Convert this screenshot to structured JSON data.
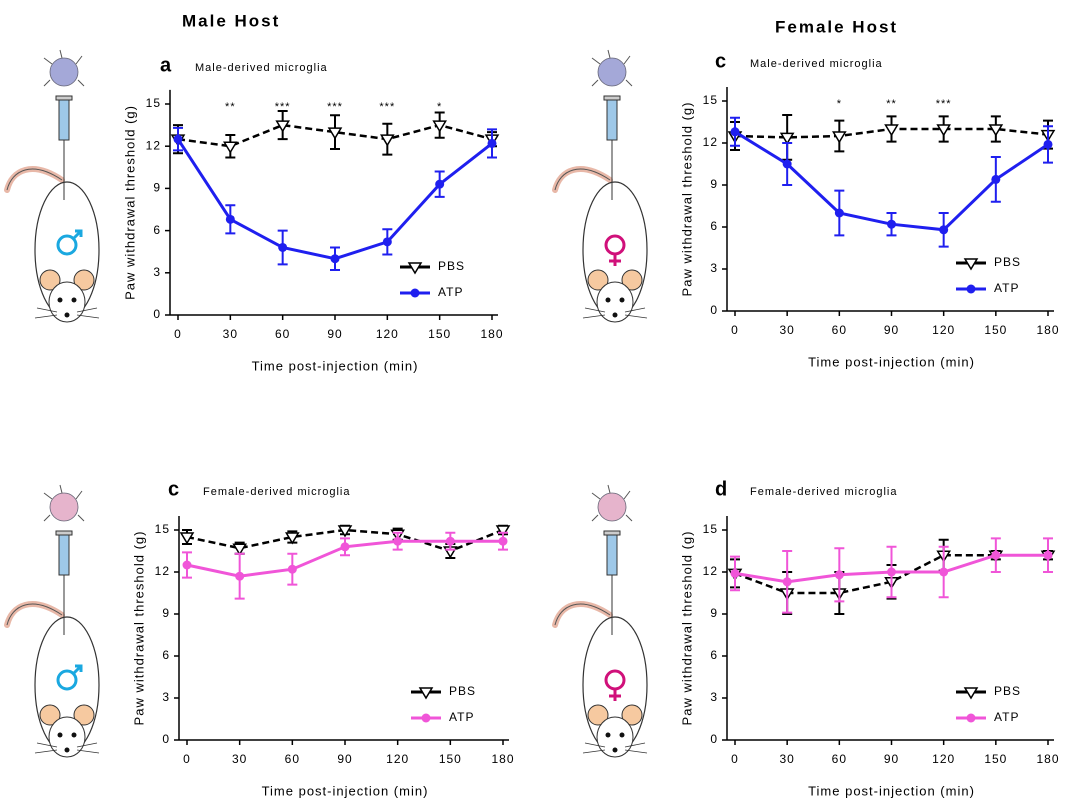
{
  "headers": [
    "Male Host",
    "Female Host"
  ],
  "chart_data": [
    {
      "type": "line",
      "panel": "a",
      "title": "Male-derived microglia",
      "xlabel": "Time post-injection (min)",
      "ylabel": "Paw withdrawal threshold (g)",
      "x": [
        0,
        30,
        60,
        90,
        120,
        150,
        180
      ],
      "xlim": [
        0,
        180
      ],
      "xticks": [
        0,
        30,
        60,
        90,
        120,
        150,
        180
      ],
      "ylim": [
        0,
        16
      ],
      "yticks": [
        0,
        3,
        6,
        9,
        12,
        15
      ],
      "legend": "lower right",
      "series": [
        {
          "name": "PBS",
          "color": "#000000",
          "linestyle": "dashed",
          "marker": "triangle-down",
          "values": [
            12.5,
            12,
            13.5,
            13,
            12.5,
            13.5,
            12.5
          ],
          "errors": [
            1,
            0.8,
            1,
            1.2,
            1.1,
            0.9,
            0.5
          ]
        },
        {
          "name": "ATP",
          "color": "#1f1fef",
          "linestyle": "solid",
          "marker": "circle",
          "values": [
            12.5,
            6.8,
            4.8,
            4,
            5.2,
            9.3,
            12.2
          ],
          "errors": [
            0.8,
            1,
            1.2,
            0.8,
            0.9,
            0.9,
            1
          ]
        }
      ],
      "annotations": [
        {
          "x": 30,
          "text": "**"
        },
        {
          "x": 60,
          "text": "***"
        },
        {
          "x": 90,
          "text": "***"
        },
        {
          "x": 120,
          "text": "***"
        },
        {
          "x": 150,
          "text": "*"
        }
      ]
    },
    {
      "type": "line",
      "panel": "c",
      "title": "Male-derived microglia",
      "xlabel": "Time post-injection (min)",
      "ylabel": "Paw withdrawal threshold (g)",
      "x": [
        0,
        30,
        60,
        90,
        120,
        150,
        180
      ],
      "xlim": [
        0,
        180
      ],
      "xticks": [
        0,
        30,
        60,
        90,
        120,
        150,
        180
      ],
      "ylim": [
        0,
        16
      ],
      "yticks": [
        0,
        3,
        6,
        9,
        12,
        15
      ],
      "legend": "lower right",
      "series": [
        {
          "name": "PBS",
          "color": "#000000",
          "linestyle": "dashed",
          "marker": "triangle-down",
          "values": [
            12.5,
            12.4,
            12.5,
            13,
            13,
            13,
            12.6
          ],
          "errors": [
            1,
            1.6,
            1.1,
            0.9,
            0.9,
            0.9,
            1
          ]
        },
        {
          "name": "ATP",
          "color": "#1f1fef",
          "linestyle": "solid",
          "marker": "circle",
          "values": [
            12.8,
            10.5,
            7,
            6.2,
            5.8,
            9.4,
            11.9
          ],
          "errors": [
            1,
            1.5,
            1.6,
            0.8,
            1.2,
            1.6,
            1.3
          ]
        }
      ],
      "annotations": [
        {
          "x": 60,
          "text": "*"
        },
        {
          "x": 90,
          "text": "**"
        },
        {
          "x": 120,
          "text": "***"
        }
      ]
    },
    {
      "type": "line",
      "panel": "c",
      "title": "Female-derived microglia",
      "xlabel": "Time post-injection (min)",
      "ylabel": "Paw withdrawal threshold (g)",
      "x": [
        0,
        30,
        60,
        90,
        120,
        150,
        180
      ],
      "xlim": [
        0,
        180
      ],
      "xticks": [
        0,
        30,
        60,
        90,
        120,
        150,
        180
      ],
      "ylim": [
        0,
        16
      ],
      "yticks": [
        0,
        3,
        6,
        9,
        12,
        15
      ],
      "legend": "lower right",
      "series": [
        {
          "name": "PBS",
          "color": "#000000",
          "linestyle": "dashed",
          "marker": "triangle-down",
          "values": [
            14.5,
            13.7,
            14.5,
            15,
            14.7,
            13.5,
            15
          ],
          "errors": [
            0.5,
            0.4,
            0.4,
            0.3,
            0.4,
            0.5,
            0.3
          ]
        },
        {
          "name": "ATP",
          "color": "#f055d8",
          "linestyle": "solid",
          "marker": "circle",
          "values": [
            12.5,
            11.7,
            12.2,
            13.8,
            14.2,
            14.2,
            14.2
          ],
          "errors": [
            0.9,
            1.6,
            1.1,
            0.6,
            0.6,
            0.6,
            0.6
          ]
        }
      ]
    },
    {
      "type": "line",
      "panel": "d",
      "title": "Female-derived microglia",
      "xlabel": "Time post-injection (min)",
      "ylabel": "Paw withdrawal threshold (g)",
      "x": [
        0,
        30,
        60,
        90,
        120,
        150,
        180
      ],
      "xlim": [
        0,
        180
      ],
      "xticks": [
        0,
        30,
        60,
        90,
        120,
        150,
        180
      ],
      "ylim": [
        0,
        16
      ],
      "yticks": [
        0,
        3,
        6,
        9,
        12,
        15
      ],
      "legend": "lower right",
      "series": [
        {
          "name": "PBS",
          "color": "#000000",
          "linestyle": "dashed",
          "marker": "triangle-down",
          "values": [
            11.9,
            10.5,
            10.5,
            11.3,
            13.2,
            13.2,
            13.2
          ],
          "errors": [
            1,
            1.5,
            1.5,
            1.2,
            1.1,
            0.3,
            0.3
          ]
        },
        {
          "name": "ATP",
          "color": "#f055d8",
          "linestyle": "solid",
          "marker": "circle",
          "values": [
            11.9,
            11.3,
            11.8,
            12,
            12,
            13.2,
            13.2
          ],
          "errors": [
            1.2,
            2.2,
            1.9,
            1.8,
            1.8,
            1.2,
            1.2
          ]
        }
      ]
    }
  ]
}
